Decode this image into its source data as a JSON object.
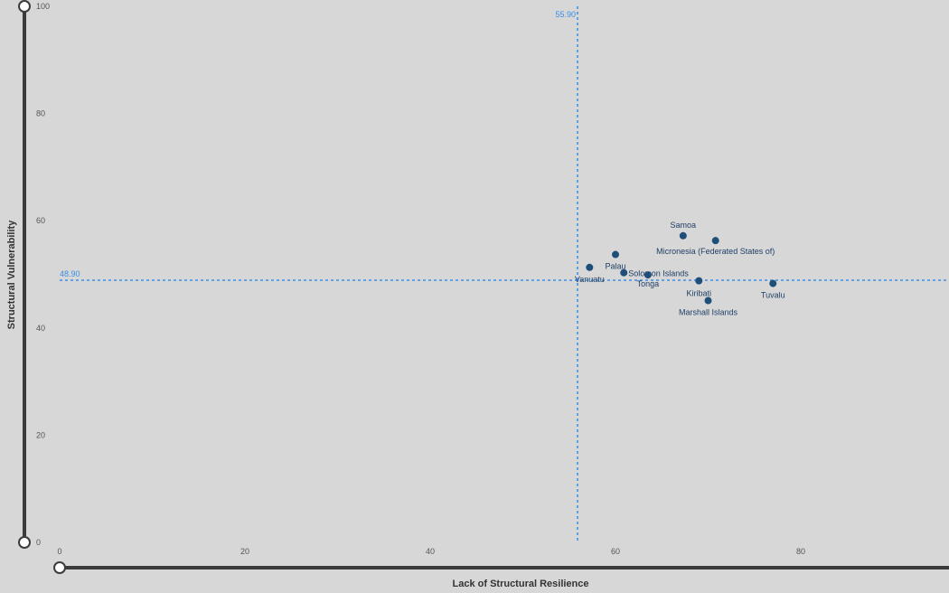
{
  "chart_data": {
    "type": "scatter",
    "xlabel": "Lack of Structural Resilience",
    "ylabel": "Structural Vulnerability",
    "xlim": [
      0,
      96
    ],
    "ylim": [
      0,
      100
    ],
    "x_ticks": [
      "0",
      "20",
      "40",
      "60",
      "80"
    ],
    "y_ticks": [
      "0",
      "20",
      "40",
      "60",
      "80",
      "100"
    ],
    "grid": false,
    "reference_lines": {
      "x": {
        "value": 55.9,
        "label": "55.90",
        "color": "#3a8ee6"
      },
      "y": {
        "value": 48.9,
        "label": "48.90",
        "color": "#3a8ee6"
      }
    },
    "point_color": "#1f4e79",
    "points": [
      {
        "label": "Samoa",
        "x": 67.3,
        "y": 57.2
      },
      {
        "label": "Micronesia (Federated States of)",
        "x": 70.8,
        "y": 56.3
      },
      {
        "label": "Palau",
        "x": 60.0,
        "y": 53.7
      },
      {
        "label": "Vanuatu",
        "x": 57.2,
        "y": 51.3
      },
      {
        "label": "Solomon Islands",
        "x": 60.9,
        "y": 50.3
      },
      {
        "label": "Tonga",
        "x": 63.5,
        "y": 49.9
      },
      {
        "label": "Kiribati",
        "x": 69.0,
        "y": 48.8
      },
      {
        "label": "Tuvalu",
        "x": 77.0,
        "y": 48.3
      },
      {
        "label": "Marshall Islands",
        "x": 70.0,
        "y": 45.1
      }
    ]
  }
}
